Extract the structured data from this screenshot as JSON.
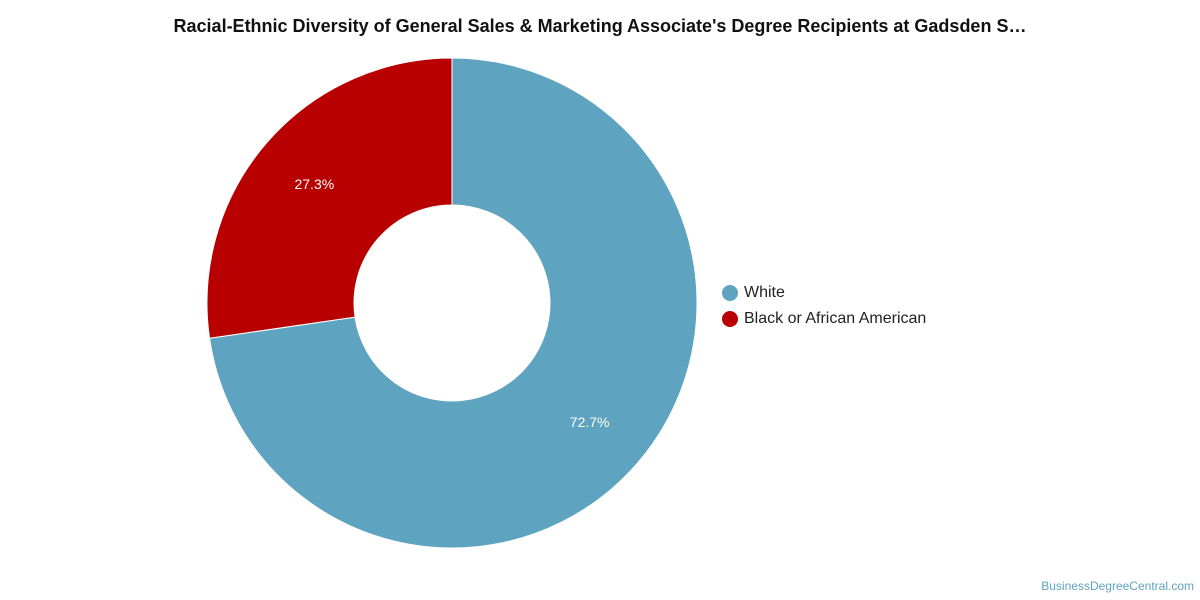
{
  "chart_data": {
    "type": "pie",
    "variant": "donut",
    "title": "Racial-Ethnic Diversity of General Sales & Marketing Associate's Degree Recipients at Gadsden S…",
    "slices": [
      {
        "name": "White",
        "value": 72.7,
        "label": "72.7%",
        "color": "#5ea3bf"
      },
      {
        "name": "Black or African American",
        "value": 27.3,
        "label": "27.3%",
        "color": "#b80000"
      }
    ],
    "legend_position": "right"
  },
  "footer": {
    "watermark": "BusinessDegreeCentral.com"
  }
}
